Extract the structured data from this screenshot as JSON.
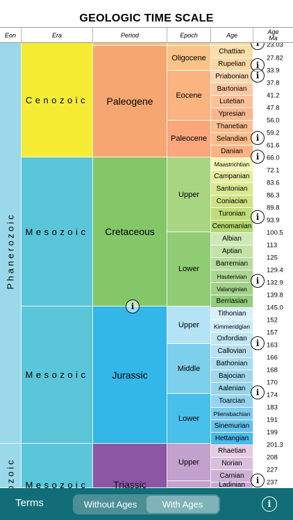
{
  "title": "GEOLOGIC TIME SCALE",
  "columns": {
    "eon": "Eon",
    "era": "Era",
    "period": "Period",
    "epoch": "Epoch",
    "age": "Age",
    "ma_line1": "Age",
    "ma_line2": "Ma"
  },
  "eons": [
    {
      "label": "Phanerozoic"
    },
    {
      "label": "ozoic"
    }
  ],
  "eras": [
    {
      "label": "Cenozoic",
      "color": "#f5ec33"
    },
    {
      "label": "Mesozoic",
      "color": "#5bc5d9"
    },
    {
      "label": "Mesozoic",
      "color": "#5bc5d9"
    },
    {
      "label": "Mesozoic",
      "color": "#5bc5d9"
    }
  ],
  "periods": [
    {
      "label": "",
      "color": "#fbbe78"
    },
    {
      "label": "Paleogene",
      "color": "#f6a671"
    },
    {
      "label": "Cretaceous",
      "color": "#84c769"
    },
    {
      "label": "Jurassic",
      "color": "#32b7e8"
    },
    {
      "label": "Triassic",
      "color": "#8c56a4"
    }
  ],
  "epochs": [
    {
      "label": "",
      "color": "#fbc982"
    },
    {
      "label": "Oligocene",
      "color": "#fcc389"
    },
    {
      "label": "Eocene",
      "color": "#fbb47f"
    },
    {
      "label": "Paleocene",
      "color": "#fba67b"
    },
    {
      "label": "Upper",
      "color": "#a8d680"
    },
    {
      "label": "Lower",
      "color": "#90cc74"
    },
    {
      "label": "Upper",
      "color": "#b4e3f8"
    },
    {
      "label": "Middle",
      "color": "#7cd0ec"
    },
    {
      "label": "Lower",
      "color": "#47c0eb"
    },
    {
      "label": "Upper",
      "color": "#c2a1cc"
    },
    {
      "label": "",
      "color": "#c2a1cc"
    }
  ],
  "ages": [
    {
      "label": "",
      "color": "#fddf9a"
    },
    {
      "label": "Chattian",
      "color": "#feddab"
    },
    {
      "label": "Rupelian",
      "color": "#fdd6a3"
    },
    {
      "label": "Priabonian",
      "color": "#fdd8b2"
    },
    {
      "label": "Bartonian",
      "color": "#fdc8a2"
    },
    {
      "label": "Lutetian",
      "color": "#fcc198"
    },
    {
      "label": "Ypresian",
      "color": "#fbb58e"
    },
    {
      "label": "Thanetian",
      "color": "#fdbe90"
    },
    {
      "label": "Selandian",
      "color": "#fdbc8a"
    },
    {
      "label": "Danian",
      "color": "#fdb383"
    },
    {
      "label": "Maastrichtian",
      "color": "#f2f7b6"
    },
    {
      "label": "Campanian",
      "color": "#e5ef9e"
    },
    {
      "label": "Santonian",
      "color": "#d9e88f"
    },
    {
      "label": "Coniacian",
      "color": "#cde383"
    },
    {
      "label": "Turonian",
      "color": "#bfdd78"
    },
    {
      "label": "Cenomanian",
      "color": "#b3d86e"
    },
    {
      "label": "Albian",
      "color": "#cde8b4"
    },
    {
      "label": "Aptian",
      "color": "#c2e2a8"
    },
    {
      "label": "Barremian",
      "color": "#b6dc9e"
    },
    {
      "label": "Hauterivian",
      "color": "#abd693"
    },
    {
      "label": "Valanginian",
      "color": "#a0d188"
    },
    {
      "label": "Berriasian",
      "color": "#94cc7d"
    },
    {
      "label": "Tithonian",
      "color": "#d8f1fb"
    },
    {
      "label": "Kimmeridgian",
      "color": "#cdecf8"
    },
    {
      "label": "Oxfordian",
      "color": "#c1e7f6"
    },
    {
      "label": "Callovian",
      "color": "#b7e0f0"
    },
    {
      "label": "Bathonian",
      "color": "#abdcee"
    },
    {
      "label": "Bajocian",
      "color": "#a0d7ec"
    },
    {
      "label": "Aalenian",
      "color": "#99d4ea"
    },
    {
      "label": "Toarcian",
      "color": "#97d3ef"
    },
    {
      "label": "Pliensbachian",
      "color": "#7fcbed"
    },
    {
      "label": "Sinemurian",
      "color": "#66c2ec"
    },
    {
      "label": "Hettangian",
      "color": "#4cb9eb"
    },
    {
      "label": "Rhaetian",
      "color": "#e4cce3"
    },
    {
      "label": "Norian",
      "color": "#d8bfdc"
    },
    {
      "label": "Carnian",
      "color": "#cdb2d6"
    },
    {
      "label": "Ladinian",
      "color": "#c7a8cf"
    }
  ],
  "ma_values": [
    "23.03",
    "27.82",
    "33.9",
    "37.8",
    "41.2",
    "47.8",
    "56.0",
    "59.2",
    "61.6",
    "66.0",
    "72.1",
    "83.6",
    "86.3",
    "89.8",
    "93.9",
    "100.5",
    "113",
    "125",
    "129.4",
    "132.9",
    "139.8",
    "145.0",
    "152",
    "157",
    "163",
    "166",
    "168",
    "170",
    "174",
    "183",
    "191",
    "199",
    "201.3",
    "208",
    "227",
    "237"
  ],
  "info_symbol": "i",
  "toolbar": {
    "terms_label": "Terms",
    "segments": [
      {
        "label": "Without Ages",
        "active": false
      },
      {
        "label": "With Ages",
        "active": true
      }
    ],
    "info_symbol": "i",
    "bg_color": "#116e78"
  }
}
